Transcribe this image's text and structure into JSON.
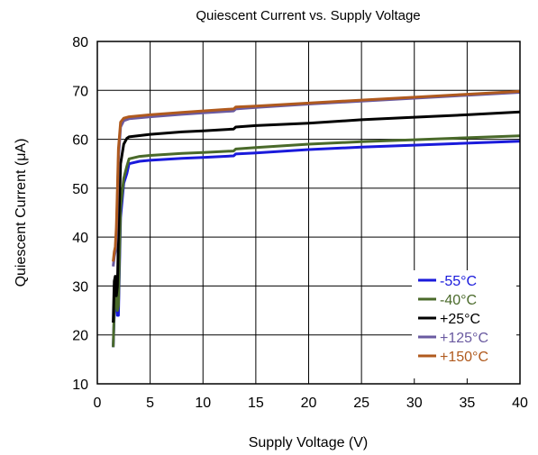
{
  "chart_data": {
    "type": "line",
    "title": "Quiescent Current vs. Supply Voltage",
    "xlabel": "Supply Voltage (V)",
    "ylabel": "Quiescent Current (μA)",
    "xlim": [
      0,
      40
    ],
    "ylim": [
      10,
      80
    ],
    "xticks": [
      0,
      5,
      10,
      15,
      20,
      25,
      30,
      35,
      40
    ],
    "yticks": [
      10,
      20,
      30,
      40,
      50,
      60,
      70,
      80
    ],
    "grid": true,
    "legend_position": "bottom-right",
    "series": [
      {
        "name": "-55°C",
        "color": "#1a1adb",
        "points": [
          [
            1.5,
            17.5
          ],
          [
            1.6,
            24
          ],
          [
            1.7,
            30
          ],
          [
            1.8,
            27
          ],
          [
            1.9,
            24
          ],
          [
            2.0,
            24
          ],
          [
            2.2,
            44
          ],
          [
            2.5,
            51
          ],
          [
            2.8,
            53
          ],
          [
            3.0,
            55
          ],
          [
            4,
            55.5
          ],
          [
            5,
            55.7
          ],
          [
            8,
            56.1
          ],
          [
            10,
            56.3
          ],
          [
            12.9,
            56.6
          ],
          [
            13.1,
            57.0
          ],
          [
            15,
            57.2
          ],
          [
            20,
            57.9
          ],
          [
            25,
            58.4
          ],
          [
            30,
            58.8
          ],
          [
            35,
            59.2
          ],
          [
            40,
            59.6
          ]
        ]
      },
      {
        "name": "-40°C",
        "color": "#4a6a2a",
        "points": [
          [
            1.5,
            17.5
          ],
          [
            1.6,
            25
          ],
          [
            1.7,
            30
          ],
          [
            1.8,
            27
          ],
          [
            1.9,
            25
          ],
          [
            2.0,
            26
          ],
          [
            2.2,
            46
          ],
          [
            2.5,
            52
          ],
          [
            2.8,
            54.5
          ],
          [
            3.0,
            56
          ],
          [
            4,
            56.5
          ],
          [
            5,
            56.7
          ],
          [
            8,
            57.1
          ],
          [
            10,
            57.3
          ],
          [
            12.9,
            57.6
          ],
          [
            13.1,
            58.0
          ],
          [
            15,
            58.3
          ],
          [
            20,
            59.0
          ],
          [
            25,
            59.5
          ],
          [
            30,
            59.9
          ],
          [
            35,
            60.3
          ],
          [
            40,
            60.7
          ]
        ]
      },
      {
        "name": "+25°C",
        "color": "#000000",
        "points": [
          [
            1.5,
            22.5
          ],
          [
            1.6,
            31
          ],
          [
            1.7,
            32
          ],
          [
            1.8,
            28
          ],
          [
            1.9,
            30
          ],
          [
            2.0,
            40
          ],
          [
            2.2,
            55
          ],
          [
            2.5,
            59
          ],
          [
            2.8,
            60.2
          ],
          [
            3.0,
            60.5
          ],
          [
            5,
            61.0
          ],
          [
            8,
            61.5
          ],
          [
            10,
            61.7
          ],
          [
            12.9,
            62.1
          ],
          [
            13.1,
            62.5
          ],
          [
            15,
            62.8
          ],
          [
            20,
            63.3
          ],
          [
            25,
            64.0
          ],
          [
            30,
            64.5
          ],
          [
            35,
            65.0
          ],
          [
            40,
            65.6
          ]
        ]
      },
      {
        "name": "+125°C",
        "color": "#6a5aa0",
        "points": [
          [
            1.5,
            34
          ],
          [
            1.6,
            36
          ],
          [
            1.7,
            37
          ],
          [
            1.8,
            40
          ],
          [
            1.9,
            48
          ],
          [
            2.0,
            56
          ],
          [
            2.2,
            62.5
          ],
          [
            2.5,
            63.8
          ],
          [
            3.0,
            64.2
          ],
          [
            5,
            64.6
          ],
          [
            8,
            65.1
          ],
          [
            10,
            65.4
          ],
          [
            12.9,
            65.8
          ],
          [
            13.1,
            66.2
          ],
          [
            15,
            66.5
          ],
          [
            20,
            67.2
          ],
          [
            25,
            67.8
          ],
          [
            30,
            68.4
          ],
          [
            35,
            69.0
          ],
          [
            40,
            69.6
          ]
        ]
      },
      {
        "name": "+150°C",
        "color": "#b05a1e",
        "points": [
          [
            1.5,
            35
          ],
          [
            1.6,
            37
          ],
          [
            1.7,
            38
          ],
          [
            1.8,
            42
          ],
          [
            1.9,
            50
          ],
          [
            2.0,
            58
          ],
          [
            2.2,
            63.5
          ],
          [
            2.5,
            64.3
          ],
          [
            3.0,
            64.6
          ],
          [
            5,
            65.0
          ],
          [
            8,
            65.5
          ],
          [
            10,
            65.8
          ],
          [
            12.9,
            66.2
          ],
          [
            13.1,
            66.6
          ],
          [
            15,
            66.8
          ],
          [
            20,
            67.4
          ],
          [
            25,
            68.0
          ],
          [
            30,
            68.6
          ],
          [
            35,
            69.2
          ],
          [
            40,
            69.8
          ]
        ]
      }
    ]
  }
}
